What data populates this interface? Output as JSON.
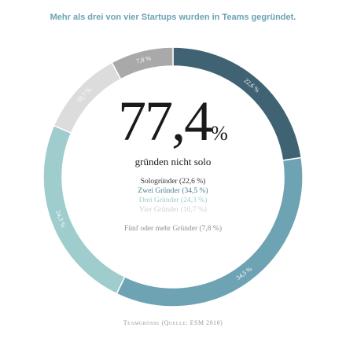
{
  "title": "Mehr als drei von vier Startups wurden in Teams gegründet.",
  "headline": {
    "number": "77,4",
    "unit": "%",
    "caption": "gründen nicht solo"
  },
  "source": "Teamgrösse (Quelle: ESM 2016)",
  "colors": {
    "background": "#ffffff",
    "title": "#6aa3b4"
  },
  "chart_data": {
    "type": "pie",
    "title": "Mehr als drei von vier Startups wurden in Teams gegründet.",
    "donut": true,
    "unit": "%",
    "slices": [
      {
        "name": "Sologründer",
        "value": 22.6,
        "label": "22,6 %",
        "legend": "Sologründer (22,6  %)",
        "color": "#3f6373",
        "legend_color": "#333333"
      },
      {
        "name": "Zwei Gründer",
        "value": 34.5,
        "label": "34,5 %",
        "legend": "Zwei Gründer (34,5 %)",
        "color": "#6ea3b3",
        "legend_color": "#4f7f8f"
      },
      {
        "name": "Drei Gründer",
        "value": 24.3,
        "label": "24,3 %",
        "legend": "Drei Gründer (24,3 %)",
        "color": "#9fcccd",
        "legend_color": "#9fcccd"
      },
      {
        "name": "Vier Gründer",
        "value": 10.7,
        "label": "10,7 %",
        "legend": "Vier Gründer (10,7 %)",
        "color": "#dcdcdc",
        "legend_color": "#d0d0d0"
      },
      {
        "name": "Fünf oder mehr Gründer",
        "value": 7.8,
        "label": "7,8 %",
        "legend": "Fünf oder mehr Gründer (7,8 %)",
        "color": "#a9a9a9",
        "legend_color": "#8e8e8e"
      }
    ]
  }
}
